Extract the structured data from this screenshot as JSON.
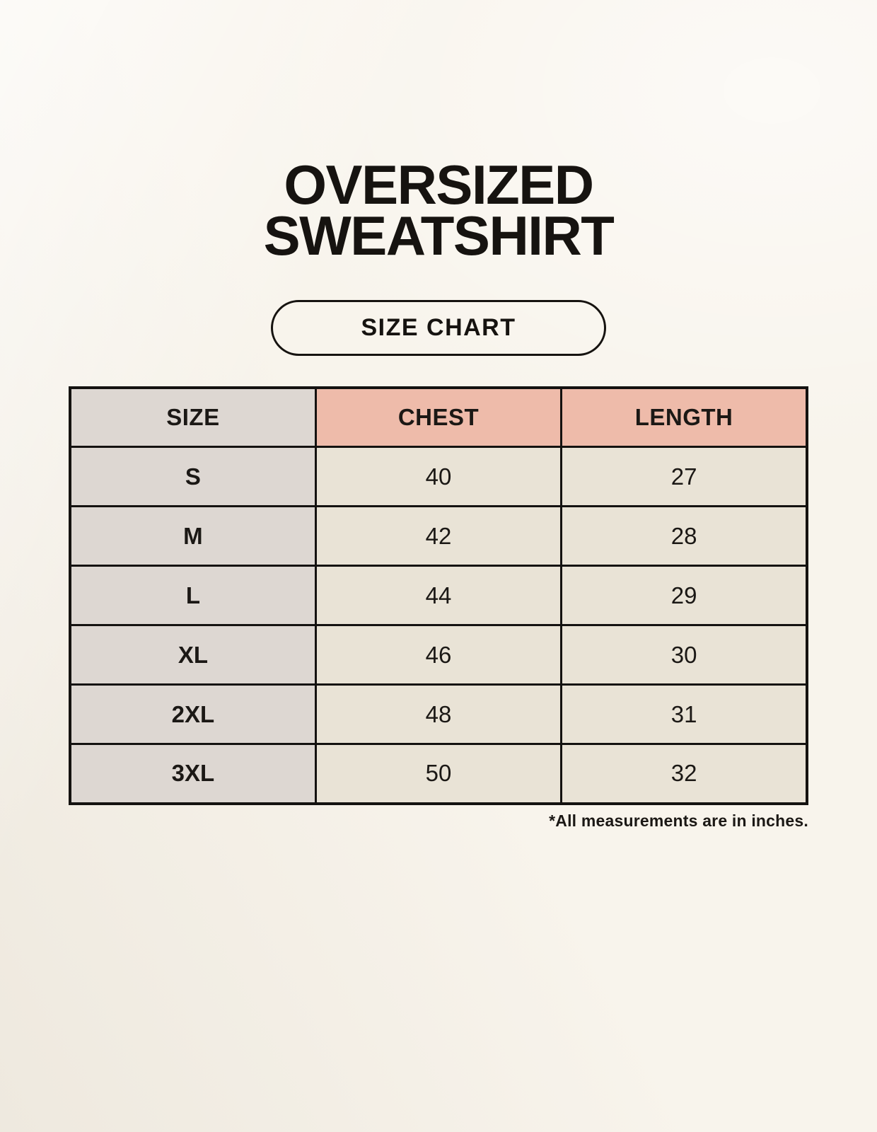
{
  "page": {
    "title_line1": "OVERSIZED",
    "title_line2": "SWEATSHIRT",
    "badge_label": "SIZE CHART",
    "footnote": "*All measurements are in inches."
  },
  "colors": {
    "page_background": "#f8f4ec",
    "header_size_bg": "#ddd7d2",
    "header_measure_bg": "#eebbaa",
    "row_label_bg": "#ddd7d2",
    "value_cell_bg": "#e9e3d6",
    "grid_border": "#141210",
    "text": "#1b1815"
  },
  "chart_data": {
    "type": "table",
    "title": "OVERSIZED SWEATSHIRT",
    "subtitle": "SIZE CHART",
    "columns": [
      "SIZE",
      "CHEST",
      "LENGTH"
    ],
    "rows": [
      {
        "size": "S",
        "chest": 40,
        "length": 27
      },
      {
        "size": "M",
        "chest": 42,
        "length": 28
      },
      {
        "size": "L",
        "chest": 44,
        "length": 29
      },
      {
        "size": "XL",
        "chest": 46,
        "length": 30
      },
      {
        "size": "2XL",
        "chest": 48,
        "length": 31
      },
      {
        "size": "3XL",
        "chest": 50,
        "length": 32
      }
    ],
    "units": "inches",
    "footnote": "*All measurements are in inches."
  }
}
